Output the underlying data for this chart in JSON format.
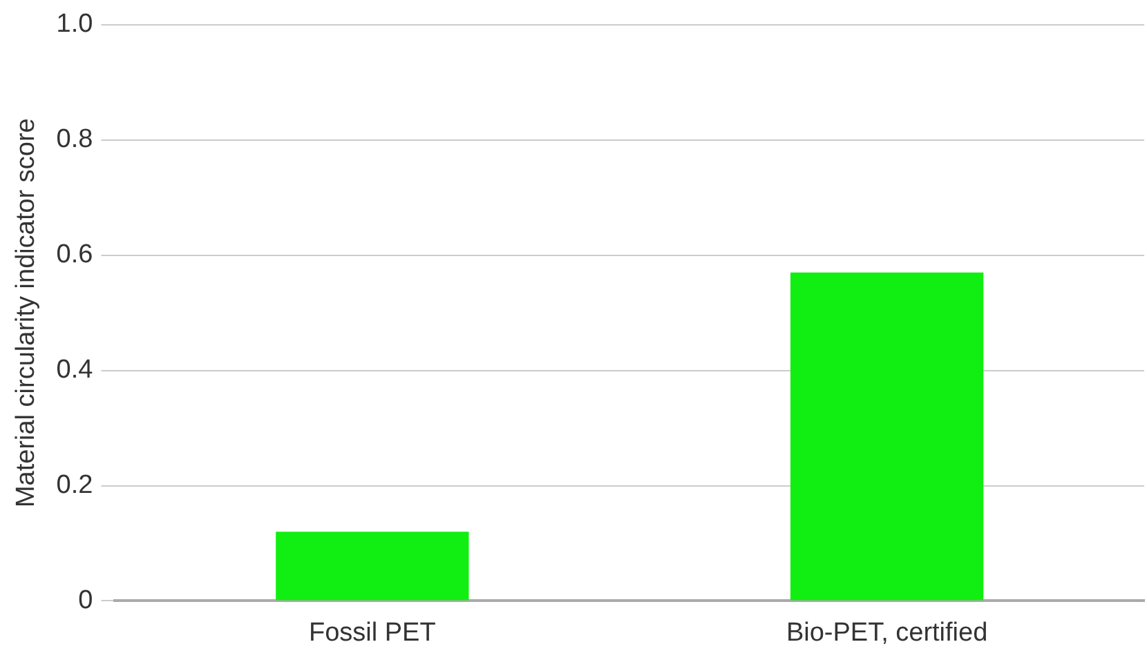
{
  "chart_data": {
    "type": "bar",
    "ylabel": "Material circularity indicator score",
    "categories": [
      "Fossil PET",
      "Bio-PET, certified"
    ],
    "values": [
      0.12,
      0.57
    ],
    "color": "#11ee11",
    "ylim": [
      0,
      1
    ],
    "yticks": [
      0,
      0.2,
      0.4,
      0.6,
      0.8,
      {
        "value": 1,
        "label": "1.0"
      }
    ],
    "grid": "y"
  }
}
